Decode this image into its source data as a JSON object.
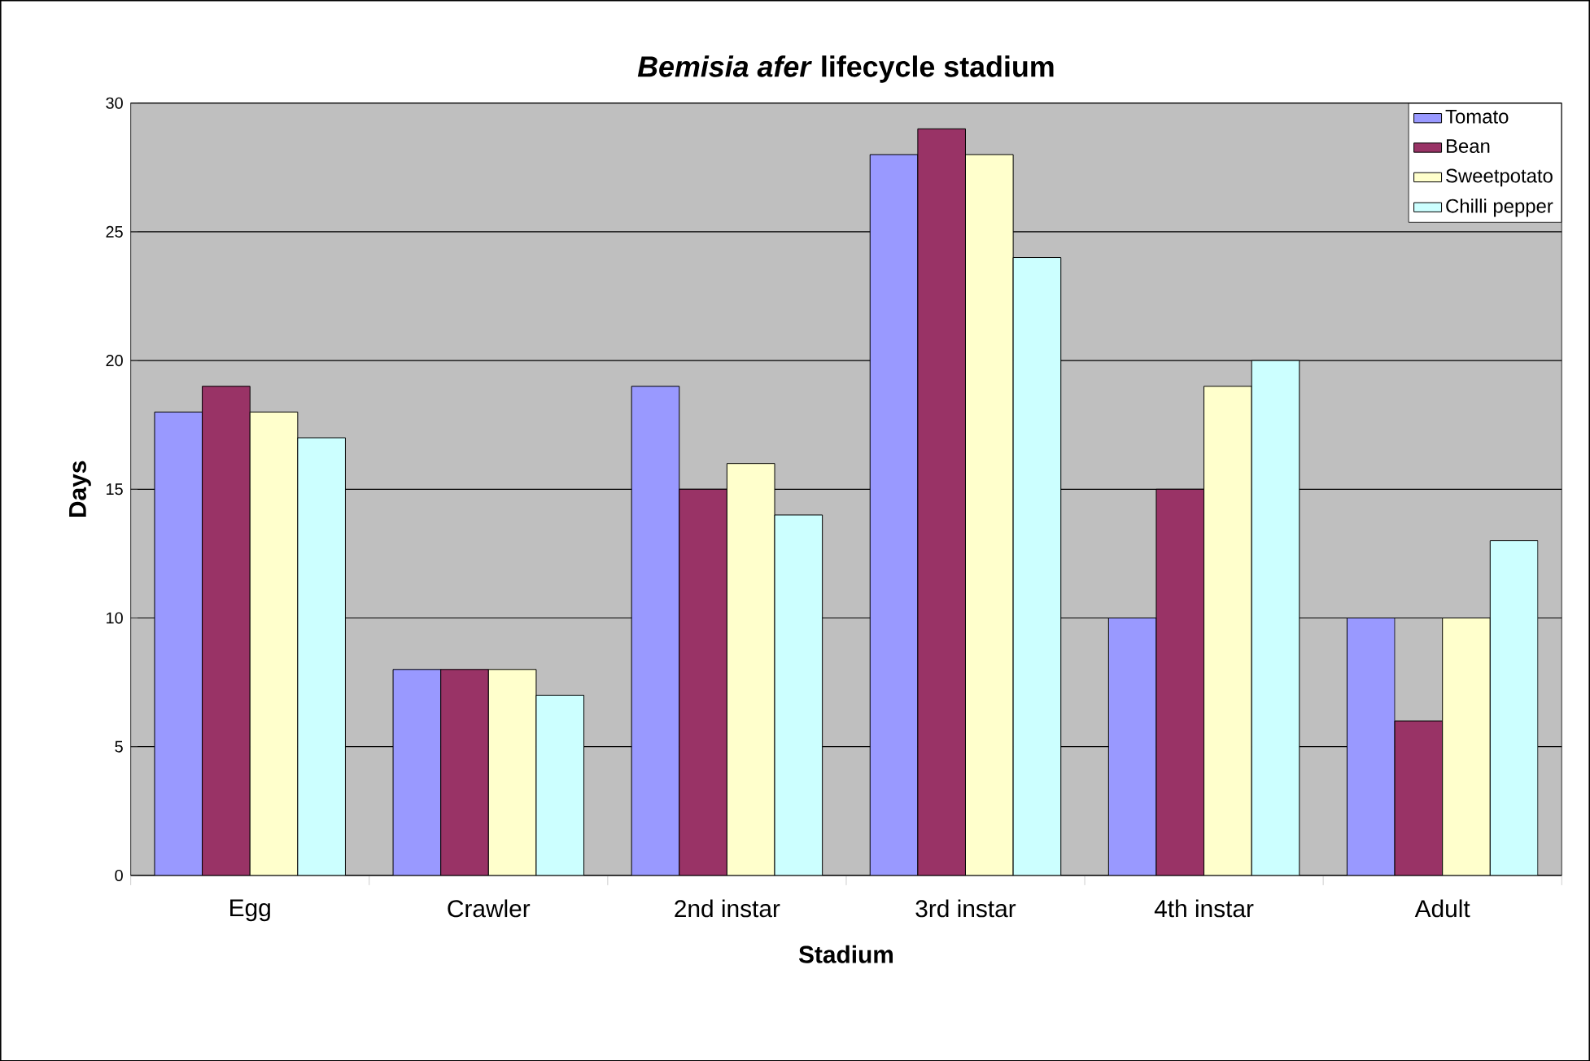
{
  "chart_data": {
    "type": "bar",
    "title": "*Bemisia afer* lifecycle stadium",
    "xlabel": "Stadium",
    "ylabel": "Days",
    "categories": [
      "Egg",
      "Crawler",
      "2nd instar",
      "3rd instar",
      "4th instar",
      "Adult"
    ],
    "series": [
      {
        "name": "Tomato",
        "color": "#9999ff",
        "values": [
          18,
          8,
          19,
          28,
          10,
          10
        ]
      },
      {
        "name": "Bean",
        "color": "#993366",
        "values": [
          19,
          8,
          15,
          29,
          15,
          6
        ]
      },
      {
        "name": "Sweetpotato",
        "color": "#ffffcc",
        "values": [
          18,
          8,
          16,
          28,
          19,
          10
        ]
      },
      {
        "name": "Chilli pepper",
        "color": "#ccffff",
        "values": [
          17,
          7,
          14,
          24,
          20,
          13
        ]
      }
    ],
    "ylim": [
      0,
      30
    ],
    "yticks": [
      0,
      5,
      10,
      15,
      20,
      25,
      30
    ],
    "grid": "y",
    "legend": "top right"
  }
}
